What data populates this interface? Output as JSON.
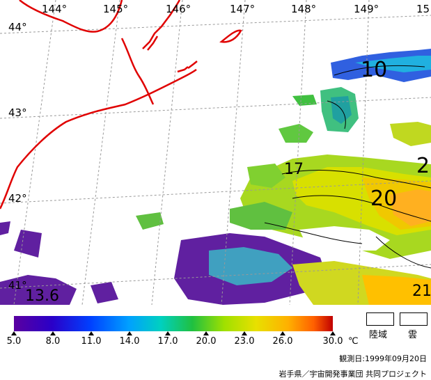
{
  "map": {
    "lon_labels": [
      "144°",
      "145°",
      "146°",
      "147°",
      "148°",
      "149°",
      "15"
    ],
    "lat_labels": [
      "44°",
      "43°",
      "42°",
      "41°"
    ],
    "contour_labels": [
      "10",
      "17",
      "2",
      "20",
      "13.6",
      "21"
    ]
  },
  "legend": {
    "tick_labels": [
      "5.0",
      "8.0",
      "11.0",
      "14.0",
      "17.0",
      "20.0",
      "23.0",
      "26.0",
      "30.0"
    ],
    "unit": "℃",
    "land_label": "陸域",
    "cloud_label": "雲",
    "colors": [
      "#5a00a0",
      "#2a00c8",
      "#0040ff",
      "#00a0ff",
      "#00d0c0",
      "#20c040",
      "#a0e000",
      "#e8e000",
      "#ffb000",
      "#ff6000",
      "#c00000"
    ]
  },
  "footer": {
    "date": "観測日:1999年09月20日",
    "credit": "岩手県／宇宙開発事業団 共同プロジェクト"
  }
}
